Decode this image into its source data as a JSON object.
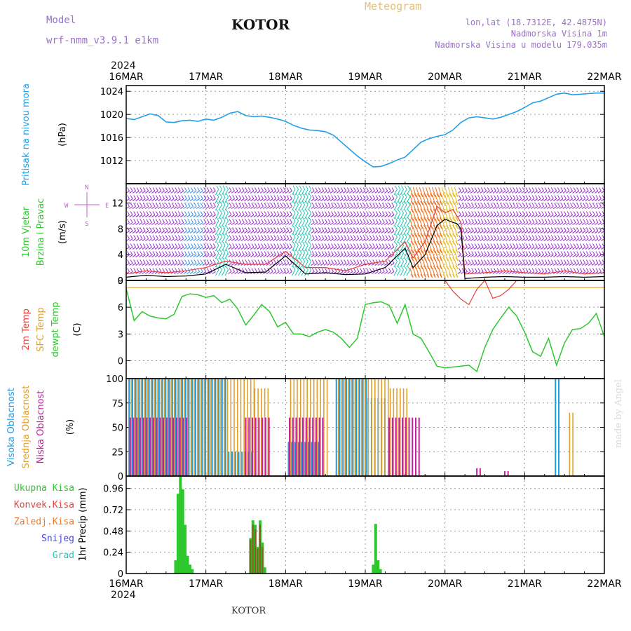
{
  "header": {
    "model_label": "Model",
    "model_name": "wrf-nmm_v3.9.1 e1km",
    "station": "KOTOR",
    "product": "Meteogram",
    "lonlat": "lon,lat (18.7312E, 42.4875N)",
    "altitude": "Nadmorska Visina 1m",
    "model_altitude": "Nadmorska Visina u modelu 179.035m",
    "year_top": "2024",
    "year_bottom": "2024",
    "footer_station": "KOTOR",
    "credit": "made by Angel"
  },
  "colors": {
    "pressure": "#22a0e6",
    "wind_speed": "#000000",
    "wind_gust": "#e8403a",
    "temp2m": "#e8403a",
    "sfc_temp": "#e0a030",
    "dewpoint": "#2ec82e",
    "cloud_high": "#1e9be6",
    "cloud_mid": "#e0a030",
    "cloud_low": "#c81ea0",
    "precip_total": "#2ec82e",
    "precip_conv": "#e8403a",
    "precip_frz": "#f07828",
    "snow": "#4646e6",
    "hail": "#28c8b4",
    "title_text": "#9b6fcf"
  },
  "chart_data": [
    {
      "type": "line",
      "panel": "pressure",
      "ylabel": "Pritisak na nivou mora",
      "unit": "(hPa)",
      "ylim": [
        1008,
        1025
      ],
      "yticks": [
        1012,
        1016,
        1020,
        1024
      ],
      "xticks": [
        "16MAR",
        "17MAR",
        "18MAR",
        "19MAR",
        "20MAR",
        "21MAR",
        "22MAR"
      ],
      "x_days": [
        0,
        0.1,
        0.2,
        0.3,
        0.4,
        0.5,
        0.6,
        0.7,
        0.8,
        0.9,
        1.0,
        1.1,
        1.2,
        1.3,
        1.4,
        1.5,
        1.6,
        1.7,
        1.8,
        1.9,
        2.0,
        2.1,
        2.2,
        2.3,
        2.4,
        2.5,
        2.6,
        2.7,
        2.8,
        2.9,
        3.0,
        3.1,
        3.2,
        3.3,
        3.4,
        3.5,
        3.6,
        3.7,
        3.8,
        3.9,
        4.0,
        4.1,
        4.2,
        4.3,
        4.4,
        4.5,
        4.6,
        4.7,
        4.8,
        4.9,
        5.0,
        5.1,
        5.2,
        5.3,
        5.4,
        5.5,
        5.6,
        5.7,
        5.8,
        5.9,
        6.0
      ],
      "values": [
        1019.3,
        1019.1,
        1019.6,
        1020.1,
        1019.8,
        1018.7,
        1018.6,
        1018.9,
        1019.0,
        1018.8,
        1019.2,
        1019.0,
        1019.5,
        1020.2,
        1020.5,
        1019.8,
        1019.6,
        1019.7,
        1019.5,
        1019.2,
        1018.8,
        1018.1,
        1017.6,
        1017.3,
        1017.2,
        1017.0,
        1016.4,
        1015.2,
        1014.0,
        1012.8,
        1011.8,
        1010.9,
        1011.0,
        1011.5,
        1012.1,
        1012.6,
        1013.9,
        1015.2,
        1015.8,
        1016.2,
        1016.5,
        1017.3,
        1018.6,
        1019.4,
        1019.6,
        1019.4,
        1019.2,
        1019.5,
        1020.0,
        1020.5,
        1021.2,
        1022.0,
        1022.3,
        1022.9,
        1023.5,
        1023.7,
        1023.4,
        1023.5,
        1023.6,
        1023.7,
        1023.7
      ]
    },
    {
      "type": "line",
      "panel": "wind",
      "ylabel": "10m Vjetar Brzina i Pravac",
      "unit": "(m/s)",
      "ylim": [
        0,
        15
      ],
      "yticks": [
        0,
        4,
        8,
        12
      ],
      "compass": {
        "n": "N",
        "s": "S",
        "e": "E",
        "w": "W"
      },
      "x_days": [
        0,
        0.25,
        0.5,
        0.75,
        1.0,
        1.25,
        1.5,
        1.75,
        2.0,
        2.25,
        2.5,
        2.75,
        3.0,
        3.25,
        3.5,
        3.6,
        3.75,
        3.9,
        4.0,
        4.1,
        4.15,
        4.2,
        4.25,
        4.5,
        4.75,
        5.0,
        5.25,
        5.5,
        5.75,
        6.0
      ],
      "series": [
        {
          "name": "speed",
          "values": [
            0.5,
            0.8,
            0.6,
            0.7,
            1.0,
            2.5,
            1.2,
            1.3,
            3.8,
            1.0,
            1.2,
            0.9,
            1.0,
            2.0,
            5.0,
            2.0,
            4.0,
            8.5,
            9.5,
            9.0,
            8.8,
            8.0,
            0.3,
            0.5,
            0.6,
            0.5,
            0.5,
            0.6,
            0.5,
            0.6
          ]
        },
        {
          "name": "gust",
          "values": [
            1.0,
            1.5,
            1.2,
            1.5,
            2.0,
            3.0,
            2.5,
            2.5,
            4.5,
            2.0,
            2.0,
            1.5,
            2.5,
            3.0,
            6.0,
            3.5,
            6.0,
            11.5,
            10.5,
            11.0,
            10.0,
            9.0,
            1.0,
            1.2,
            1.5,
            1.2,
            1.0,
            1.5,
            1.0,
            1.2
          ]
        }
      ]
    },
    {
      "type": "line",
      "panel": "temperature",
      "ylabel_lines": [
        "2m Temp",
        "SFC Temp",
        "dewpt Temp"
      ],
      "unit": "(C)",
      "ylim": [
        -2,
        9
      ],
      "yticks": [
        0,
        3,
        6,
        9
      ],
      "series": [
        {
          "name": "SFC Temp",
          "x_days": [
            0,
            6
          ],
          "values": [
            8.2,
            8.2
          ]
        },
        {
          "name": "2m Temp",
          "x_days": [
            4.0,
            4.1,
            4.2,
            4.3,
            4.4,
            4.5,
            4.6,
            4.7,
            4.8,
            4.9
          ],
          "values": [
            9.0,
            7.8,
            6.9,
            6.3,
            8.0,
            9.0,
            7.0,
            7.3,
            8.0,
            9.0
          ]
        },
        {
          "name": "dewpt Temp",
          "x_days": [
            0,
            0.1,
            0.2,
            0.3,
            0.4,
            0.5,
            0.6,
            0.7,
            0.8,
            0.9,
            1.0,
            1.1,
            1.2,
            1.3,
            1.4,
            1.5,
            1.6,
            1.7,
            1.8,
            1.9,
            2.0,
            2.1,
            2.2,
            2.3,
            2.4,
            2.5,
            2.6,
            2.7,
            2.8,
            2.9,
            3.0,
            3.1,
            3.2,
            3.3,
            3.4,
            3.5,
            3.6,
            3.7,
            3.8,
            3.9,
            4.0,
            4.1,
            4.2,
            4.3,
            4.4,
            4.5,
            4.6,
            4.7,
            4.8,
            4.9,
            5.0,
            5.1,
            5.2,
            5.3,
            5.4,
            5.5,
            5.6,
            5.7,
            5.8,
            5.9,
            6.0
          ],
          "values": [
            8.1,
            4.5,
            5.5,
            5.0,
            4.8,
            4.7,
            5.2,
            7.2,
            7.5,
            7.4,
            7.1,
            7.3,
            6.5,
            6.9,
            5.8,
            4.0,
            5.1,
            6.3,
            5.5,
            3.8,
            4.3,
            3.0,
            3.0,
            2.7,
            3.2,
            3.5,
            3.2,
            2.5,
            1.5,
            2.5,
            6.3,
            6.5,
            6.6,
            6.2,
            4.2,
            6.3,
            3.0,
            2.5,
            1.0,
            -0.6,
            -0.8,
            -0.7,
            -0.6,
            -0.5,
            -1.2,
            1.5,
            3.5,
            4.8,
            6.0,
            5.0,
            3.2,
            1.0,
            0.5,
            2.5,
            -0.5,
            2.0,
            3.5,
            3.6,
            4.2,
            5.3,
            2.7
          ]
        }
      ]
    },
    {
      "type": "bar",
      "panel": "clouds",
      "ylabel_lines": [
        "Visoka Oblacnost",
        "Srednja Oblacnost",
        "Niska Oblacnost"
      ],
      "unit": "(%)",
      "ylim": [
        0,
        100
      ],
      "yticks": [
        0,
        25,
        50,
        75,
        100
      ],
      "step_days": 0.041667,
      "series": [
        {
          "name": "Visoka Oblacnost",
          "segments": [
            {
              "from": 0.05,
              "to": 1.3,
              "value": 100
            },
            {
              "from": 1.3,
              "to": 1.6,
              "value": 25
            },
            {
              "from": 2.05,
              "to": 2.45,
              "value": 35
            },
            {
              "from": 2.65,
              "to": 3.05,
              "value": 100
            },
            {
              "from": 3.05,
              "to": 3.3,
              "value": 80
            },
            {
              "from": 5.4,
              "to": 5.45,
              "value": 100
            }
          ]
        },
        {
          "name": "Srednja Oblacnost",
          "segments": [
            {
              "from": 0.05,
              "to": 1.6,
              "value": 100
            },
            {
              "from": 1.6,
              "to": 1.8,
              "value": 90
            },
            {
              "from": 2.05,
              "to": 2.55,
              "value": 100
            },
            {
              "from": 2.65,
              "to": 3.3,
              "value": 100
            },
            {
              "from": 3.3,
              "to": 3.55,
              "value": 90
            },
            {
              "from": 5.55,
              "to": 5.6,
              "value": 65
            }
          ]
        },
        {
          "name": "Niska Oblacnost",
          "segments": [
            {
              "from": 0.05,
              "to": 0.8,
              "value": 60
            },
            {
              "from": 1.5,
              "to": 1.8,
              "value": 60
            },
            {
              "from": 2.05,
              "to": 2.5,
              "value": 60
            },
            {
              "from": 3.3,
              "to": 3.7,
              "value": 60
            },
            {
              "from": 4.4,
              "to": 4.45,
              "value": 8
            },
            {
              "from": 4.75,
              "to": 4.8,
              "value": 5
            }
          ]
        }
      ]
    },
    {
      "type": "bar",
      "panel": "precip",
      "ylabel": "1hr Precip",
      "unit": "(mm)",
      "ylim": [
        0,
        1.1
      ],
      "yticks": [
        0,
        0.24,
        0.48,
        0.72,
        0.96
      ],
      "legend": [
        "Ukupna Kisa",
        "Konvek.Kisa",
        "Zaledj.Kisa",
        "Snijeg",
        "Grad"
      ],
      "series": [
        {
          "name": "Ukupna Kisa",
          "x_days": [
            0.62,
            0.65,
            0.68,
            0.71,
            0.74,
            0.77,
            0.8,
            0.83,
            1.56,
            1.59,
            1.62,
            1.65,
            1.68,
            1.71,
            1.74,
            3.1,
            3.13,
            3.16,
            3.19
          ],
          "values": [
            0.15,
            0.9,
            1.1,
            0.95,
            0.55,
            0.2,
            0.1,
            0.05,
            0.4,
            0.6,
            0.55,
            0.3,
            0.6,
            0.35,
            0.07,
            0.1,
            0.56,
            0.15,
            0.05
          ]
        },
        {
          "name": "Konvek.Kisa",
          "x_days": [
            1.56,
            1.59,
            1.62,
            1.65,
            1.68,
            1.71
          ],
          "values": [
            0.38,
            0.55,
            0.5,
            0.28,
            0.55,
            0.3
          ]
        }
      ]
    }
  ]
}
